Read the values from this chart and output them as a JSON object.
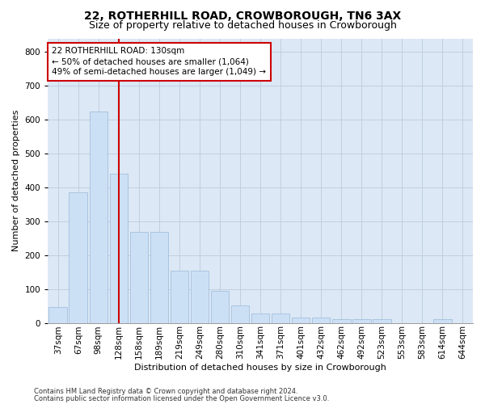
{
  "title": "22, ROTHERHILL ROAD, CROWBOROUGH, TN6 3AX",
  "subtitle": "Size of property relative to detached houses in Crowborough",
  "xlabel": "Distribution of detached houses by size in Crowborough",
  "ylabel": "Number of detached properties",
  "footer_line1": "Contains HM Land Registry data © Crown copyright and database right 2024.",
  "footer_line2": "Contains public sector information licensed under the Open Government Licence v3.0.",
  "categories": [
    "37sqm",
    "67sqm",
    "98sqm",
    "128sqm",
    "158sqm",
    "189sqm",
    "219sqm",
    "249sqm",
    "280sqm",
    "310sqm",
    "341sqm",
    "371sqm",
    "401sqm",
    "432sqm",
    "462sqm",
    "492sqm",
    "523sqm",
    "553sqm",
    "583sqm",
    "614sqm",
    "644sqm"
  ],
  "values": [
    47,
    385,
    625,
    440,
    268,
    268,
    155,
    155,
    95,
    52,
    27,
    27,
    15,
    15,
    12,
    12,
    10,
    0,
    0,
    10,
    0
  ],
  "bar_color": "#cce0f5",
  "bar_edge_color": "#9ab8d8",
  "vline_x": 3,
  "vline_color": "#cc0000",
  "annotation_text": "22 ROTHERHILL ROAD: 130sqm\n← 50% of detached houses are smaller (1,064)\n49% of semi-detached houses are larger (1,049) →",
  "annotation_box_color": "#ffffff",
  "annotation_border_color": "#cc0000",
  "ylim": [
    0,
    840
  ],
  "yticks": [
    0,
    100,
    200,
    300,
    400,
    500,
    600,
    700,
    800
  ],
  "bg_color": "#ffffff",
  "plot_bg_color": "#dce8f5",
  "grid_color": "#c0cfe0",
  "title_fontsize": 10,
  "subtitle_fontsize": 9,
  "axis_label_fontsize": 8,
  "tick_fontsize": 7.5,
  "footer_fontsize": 6
}
